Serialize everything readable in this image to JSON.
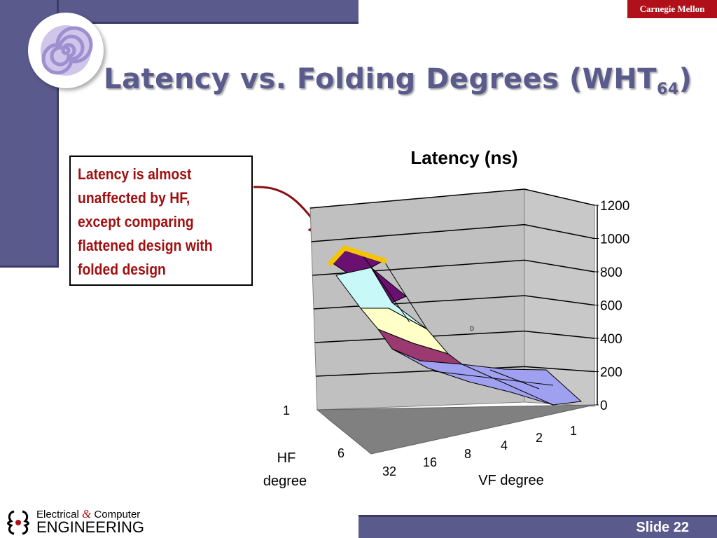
{
  "header": {
    "brand": "Carnegie Mellon",
    "title_main": "Latency vs. Folding Degrees (WHT",
    "title_sub": "64",
    "title_close": ")"
  },
  "callout": {
    "lines": [
      "Latency is almost",
      "unaffected by HF,",
      "except comparing",
      "flattened design with",
      "folded design"
    ]
  },
  "footer": {
    "slide_label": "Slide 22",
    "logo_line1_a": "Electrical ",
    "logo_line1_amp": "&",
    "logo_line1_b": " Computer",
    "logo_line2": "ENGINEERING"
  },
  "colors": {
    "accent": "#5a5b8c",
    "callout_text": "#a01010",
    "brand_red": "#b0101a",
    "highlight": "#f5c400"
  },
  "chart_data": {
    "type": "surface",
    "title": "Latency (ns)",
    "x_axis_label": "VF degree",
    "y_axis_label": "HF degree",
    "vf_categories": [
      "32",
      "16",
      "8",
      "4",
      "2",
      "1"
    ],
    "hf_categories_visible": [
      "1",
      "6"
    ],
    "z_ticks": [
      "0",
      "200",
      "400",
      "600",
      "800",
      "1000",
      "1200"
    ],
    "zlim": [
      0,
      1200
    ],
    "annotation": "D",
    "approx_latency_by_vf": {
      "32": 1000,
      "16": 400,
      "8": 50,
      "4": 40,
      "2": 30,
      "1": 20
    }
  }
}
